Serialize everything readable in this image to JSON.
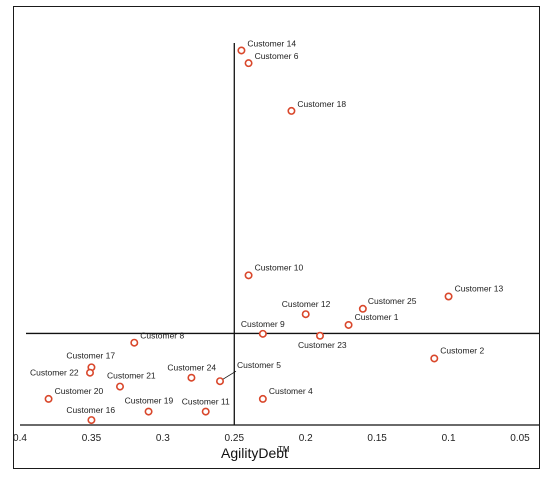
{
  "chart_data": {
    "type": "scatter",
    "xlabel": "AgilityDebt",
    "xlabel_superscript": "TM",
    "ylabel": "",
    "x_axis_reversed": true,
    "xlim": [
      0.4,
      0.05
    ],
    "ylim": [
      0,
      100
    ],
    "x_ticks": [
      "0.4",
      "0.35",
      "0.3",
      "0.25",
      "0.2",
      "0.15",
      "0.1",
      "0.05"
    ],
    "quadrant_lines": {
      "x": 0.25,
      "y": 23
    },
    "marker_color": "#d9472b",
    "points": [
      {
        "label": "Customer 14",
        "x": 0.245,
        "y": 96.5
      },
      {
        "label": "Customer 6",
        "x": 0.24,
        "y": 93.2
      },
      {
        "label": "Customer 18",
        "x": 0.21,
        "y": 80.8
      },
      {
        "label": "Customer 10",
        "x": 0.24,
        "y": 38.1
      },
      {
        "label": "Customer 13",
        "x": 0.1,
        "y": 32.6
      },
      {
        "label": "Customer 25",
        "x": 0.16,
        "y": 29.4
      },
      {
        "label": "Customer 12",
        "x": 0.2,
        "y": 28.0
      },
      {
        "label": "Customer 1",
        "x": 0.17,
        "y": 25.2
      },
      {
        "label": "Customer 9",
        "x": 0.23,
        "y": 22.9
      },
      {
        "label": "Customer 23",
        "x": 0.19,
        "y": 22.4
      },
      {
        "label": "Customer 8",
        "x": 0.32,
        "y": 20.6
      },
      {
        "label": "Customer 2",
        "x": 0.11,
        "y": 16.5
      },
      {
        "label": "Customer 17",
        "x": 0.35,
        "y": 14.2
      },
      {
        "label": "Customer  22",
        "x": 0.351,
        "y": 12.8
      },
      {
        "label": "Customer 24",
        "x": 0.28,
        "y": 11.5
      },
      {
        "label": "Customer 5",
        "x": 0.26,
        "y": 10.6
      },
      {
        "label": "Customer 21",
        "x": 0.33,
        "y": 9.2
      },
      {
        "label": "Customer 20",
        "x": 0.38,
        "y": 6.0
      },
      {
        "label": "Customer 4",
        "x": 0.23,
        "y": 6.0
      },
      {
        "label": "Customer 19",
        "x": 0.31,
        "y": 2.7
      },
      {
        "label": "Customer 11",
        "x": 0.27,
        "y": 2.7
      },
      {
        "label": "Customer 16",
        "x": 0.35,
        "y": 0.5
      }
    ]
  }
}
